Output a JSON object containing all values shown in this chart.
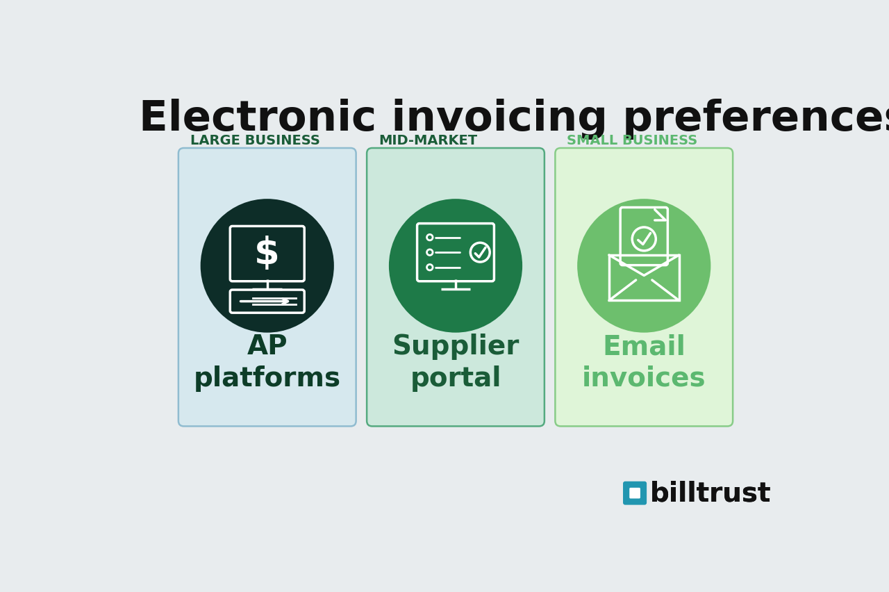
{
  "title": "Electronic invoicing preferences",
  "background_color": "#e8ecee",
  "title_color": "#111111",
  "title_fontsize": 44,
  "categories": [
    "LARGE BUSINESS",
    "MID-MARKET",
    "SMALL BUSINESS"
  ],
  "category_colors": [
    "#1a5c38",
    "#1a5c38",
    "#5cb870"
  ],
  "labels": [
    "AP\nplatforms",
    "Supplier\nportal",
    "Email\ninvoices"
  ],
  "label_colors": [
    "#0d3d28",
    "#1a5c38",
    "#5cb870"
  ],
  "box_bg_colors": [
    "#d6e8ee",
    "#cce8dc",
    "#dff5d8"
  ],
  "box_border_colors": [
    "#90bcd0",
    "#55aa80",
    "#88cc88"
  ],
  "ellipse_colors": [
    "#0d2d28",
    "#1e7a48",
    "#6dbf6d"
  ],
  "billtrust_color": "#111111"
}
